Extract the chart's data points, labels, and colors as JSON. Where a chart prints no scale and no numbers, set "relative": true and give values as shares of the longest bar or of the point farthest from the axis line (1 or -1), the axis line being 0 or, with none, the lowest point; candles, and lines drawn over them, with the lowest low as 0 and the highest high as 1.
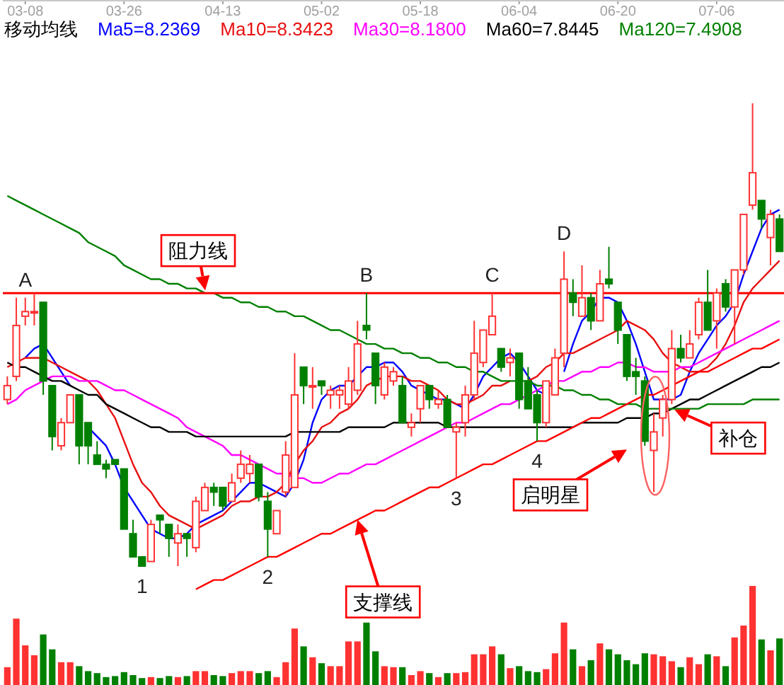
{
  "chart_data": [
    {
      "type": "candlestick",
      "relative": true,
      "legend": "top left",
      "legend_title": "移动均线",
      "tick_labels": "x",
      "categories": [
        null,
        null,
        "03-08",
        null,
        null,
        null,
        null,
        null,
        null,
        null,
        null,
        null,
        null,
        "03-26",
        null,
        null,
        null,
        null,
        null,
        null,
        null,
        null,
        null,
        null,
        "04-13",
        null,
        null,
        null,
        null,
        null,
        null,
        null,
        null,
        null,
        null,
        "05-02",
        null,
        null,
        null,
        null,
        null,
        null,
        null,
        null,
        null,
        null,
        "05-18",
        null,
        null,
        null,
        null,
        null,
        null,
        null,
        null,
        null,
        null,
        "06-04",
        null,
        null,
        null,
        null,
        null,
        null,
        null,
        null,
        null,
        null,
        "06-20",
        null,
        null,
        null,
        null,
        null,
        null,
        null,
        null,
        null,
        null,
        "07-06",
        null,
        null,
        null,
        null,
        null,
        null,
        null
      ],
      "ohlc": [
        [
          0.36,
          0.41,
          0.35,
          0.39
        ],
        [
          0.41,
          0.58,
          0.4,
          0.52
        ],
        [
          0.54,
          0.58,
          0.52,
          0.55
        ],
        [
          0.55,
          0.59,
          0.52,
          0.55
        ],
        [
          0.57,
          0.57,
          0.37,
          0.4
        ],
        [
          0.39,
          0.39,
          0.25,
          0.28
        ],
        [
          0.26,
          0.32,
          0.25,
          0.31
        ],
        [
          0.31,
          0.37,
          0.31,
          0.37
        ],
        [
          0.37,
          0.37,
          0.22,
          0.26
        ],
        [
          0.31,
          0.31,
          0.22,
          0.26
        ],
        [
          0.24,
          0.27,
          0.22,
          0.22
        ],
        [
          0.22,
          0.23,
          0.19,
          0.21
        ],
        [
          0.23,
          0.23,
          0.22,
          0.22
        ],
        [
          0.21,
          0.21,
          0.08,
          0.08
        ],
        [
          0.07,
          0.1,
          0.02,
          0.02
        ],
        [
          0.02,
          0.02,
          0,
          0
        ],
        [
          0.01,
          0.1,
          0.01,
          0.09
        ],
        [
          0.11,
          0.11,
          0.07,
          0.1
        ],
        [
          0.09,
          0.09,
          0.02,
          0.06
        ],
        [
          0.05,
          0.09,
          0,
          0.07
        ],
        [
          0.07,
          0.07,
          0.02,
          0.06
        ],
        [
          0.04,
          0.15,
          0.03,
          0.14
        ],
        [
          0.12,
          0.18,
          0.12,
          0.17
        ],
        [
          0.17,
          0.18,
          0.13,
          0.16
        ],
        [
          0.17,
          0.17,
          0.12,
          0.13
        ],
        [
          0.14,
          0.2,
          0.14,
          0.18
        ],
        [
          0.19,
          0.25,
          0.18,
          0.22
        ],
        [
          0.2,
          0.24,
          0.18,
          0.22
        ],
        [
          0.22,
          0.22,
          0.14,
          0.15
        ],
        [
          0.14,
          0.16,
          0.02,
          0.08
        ],
        [
          0.07,
          0.12,
          0.07,
          0.12
        ],
        [
          0.16,
          0.27,
          0.15,
          0.24
        ],
        [
          0.17,
          0.46,
          0.17,
          0.37
        ],
        [
          0.43,
          0.43,
          0.35,
          0.39
        ],
        [
          0.39,
          0.43,
          0.34,
          0.39
        ],
        [
          0.4,
          0.4,
          0.37,
          0.39
        ],
        [
          0.37,
          0.39,
          0.34,
          0.38
        ],
        [
          0.37,
          0.39,
          0.34,
          0.38
        ],
        [
          0.35,
          0.43,
          0.34,
          0.4
        ],
        [
          0.38,
          0.53,
          0.37,
          0.48
        ],
        [
          0.52,
          0.59,
          0.49,
          0.51
        ],
        [
          0.46,
          0.46,
          0.35,
          0.39
        ],
        [
          0.37,
          0.44,
          0.36,
          0.43
        ],
        [
          0.4,
          0.43,
          0.39,
          0.42
        ],
        [
          0.39,
          0.41,
          0.31,
          0.31
        ],
        [
          0.3,
          0.33,
          0.28,
          0.31
        ],
        [
          0.34,
          0.39,
          0.31,
          0.39
        ],
        [
          0.39,
          0.39,
          0.34,
          0.36
        ],
        [
          0.35,
          0.38,
          0.34,
          0.36
        ],
        [
          0.36,
          0.37,
          0.3,
          0.3
        ],
        [
          0.29,
          0.31,
          0.19,
          0.3
        ],
        [
          0.31,
          0.39,
          0.28,
          0.37
        ],
        [
          0.37,
          0.53,
          0.36,
          0.46
        ],
        [
          0.44,
          0.51,
          0.43,
          0.51
        ],
        [
          0.5,
          0.59,
          0.5,
          0.54
        ],
        [
          0.47,
          0.47,
          0.42,
          0.43
        ],
        [
          0.44,
          0.47,
          0.41,
          0.45
        ],
        [
          0.46,
          0.46,
          0.34,
          0.36
        ],
        [
          0.4,
          0.43,
          0.34,
          0.34
        ],
        [
          0.37,
          0.38,
          0.27,
          0.31
        ],
        [
          0.31,
          0.4,
          0.3,
          0.4
        ],
        [
          0.37,
          0.47,
          0.37,
          0.45
        ],
        [
          0.46,
          0.68,
          0.43,
          0.62
        ],
        [
          0.59,
          0.62,
          0.54,
          0.57
        ],
        [
          0.54,
          0.65,
          0.54,
          0.58
        ],
        [
          0.58,
          0.59,
          0.51,
          0.53
        ],
        [
          0.53,
          0.64,
          0.53,
          0.61
        ],
        [
          0.62,
          0.69,
          0.6,
          0.61
        ],
        [
          0.57,
          0.57,
          0.48,
          0.51
        ],
        [
          0.5,
          0.5,
          0.4,
          0.41
        ],
        [
          0.42,
          0.45,
          0.37,
          0.41
        ],
        [
          0.4,
          0.41,
          0.26,
          0.27
        ],
        [
          0.25,
          0.33,
          0.16,
          0.29
        ],
        [
          0.32,
          0.37,
          0.28,
          0.36
        ],
        [
          0.36,
          0.51,
          0.35,
          0.47
        ],
        [
          0.47,
          0.5,
          0.44,
          0.45
        ],
        [
          0.45,
          0.51,
          0.45,
          0.48
        ],
        [
          0.5,
          0.58,
          0.49,
          0.57
        ],
        [
          0.57,
          0.64,
          0.51,
          0.51
        ],
        [
          0.53,
          0.6,
          0.47,
          0.59
        ],
        [
          0.61,
          0.62,
          0.55,
          0.56
        ],
        [
          0.56,
          0.64,
          0.48,
          0.64
        ],
        [
          0.64,
          0.76,
          0.63,
          0.76
        ],
        [
          0.78,
          1,
          0.77,
          0.85
        ],
        [
          0.79,
          0.79,
          0.73,
          0.75
        ],
        [
          0.71,
          0.77,
          0.65,
          0.76
        ],
        [
          0.75,
          0.76,
          0.68,
          0.68
        ]
      ],
      "colors": [
        "#ff3232",
        "#ff3232",
        "#ff3232",
        "#ff3232",
        "#008000",
        "#008000",
        "#ff3232",
        "#ff3232",
        "#008000",
        "#008000",
        "#008000",
        "#008000",
        "#008000",
        "#008000",
        "#008000",
        "#008000",
        "#ff3232",
        "#008000",
        "#008000",
        "#ff3232",
        "#008000",
        "#ff3232",
        "#ff3232",
        "#008000",
        "#008000",
        "#ff3232",
        "#ff3232",
        "#ff3232",
        "#008000",
        "#008000",
        "#ff3232",
        "#ff3232",
        "#ff3232",
        "#008000",
        "#ff3232",
        "#008000",
        "#ff3232",
        "#ff3232",
        "#ff3232",
        "#ff3232",
        "#008000",
        "#008000",
        "#ff3232",
        "#ff3232",
        "#008000",
        "#ff3232",
        "#ff3232",
        "#008000",
        "#ff3232",
        "#008000",
        "#ff3232",
        "#ff3232",
        "#ff3232",
        "#ff3232",
        "#ff3232",
        "#008000",
        "#ff3232",
        "#008000",
        "#008000",
        "#008000",
        "#ff3232",
        "#ff3232",
        "#ff3232",
        "#008000",
        "#ff3232",
        "#008000",
        "#ff3232",
        "#008000",
        "#008000",
        "#008000",
        "#008000",
        "#008000",
        "#ff3232",
        "#ff3232",
        "#ff3232",
        "#008000",
        "#ff3232",
        "#ff3232",
        "#008000",
        "#ff3232",
        "#008000",
        "#ff3232",
        "#ff3232",
        "#ff3232",
        "#008000",
        "#ff3232",
        "#008000"
      ],
      "series": [
        {
          "type": "line",
          "name": "Ma5=8.2369",
          "color": "#0000ff",
          "values": [
            null,
            null,
            0.45,
            0.47,
            0.48,
            0.45,
            0.42,
            0.39,
            null,
            0.3,
            0.28,
            0.26,
            0.22,
            0.17,
            0.14,
            0.11,
            0.08,
            0.07,
            0.06,
            0.06,
            0.07,
            0.09,
            0.1,
            0.11,
            0.12,
            0.14,
            0.16,
            0.18,
            0.18,
            0.17,
            0.16,
            0.15,
            0.18,
            0.23,
            0.31,
            0.36,
            0.38,
            0.39,
            0.39,
            0.41,
            0.43,
            0.43,
            0.44,
            0.44,
            0.42,
            0.39,
            0.38,
            0.37,
            0.36,
            0.36,
            0.35,
            0.34,
            0.37,
            0.41,
            0.43,
            0.45,
            0.46,
            0.44,
            0.41,
            0.38,
            0.37,
            null,
            0.42,
            0.48,
            0.53,
            0.55,
            0.58,
            0.58,
            0.57,
            0.53,
            0.48,
            0.42,
            0.36,
            0.36,
            0.36,
            0.37,
            0.42,
            0.46,
            0.49,
            0.52,
            0.54,
            0.57,
            0.63,
            0.68,
            0.73,
            0.76,
            0.77
          ]
        },
        {
          "type": "line",
          "name": "Ma10=8.3423",
          "color": "#e81010",
          "values": [
            0.43,
            0.44,
            0.45,
            0.45,
            0.45,
            0.44,
            0.43,
            0.42,
            0.41,
            0.4,
            0.38,
            0.35,
            0.32,
            0.27,
            0.22,
            0.18,
            0.16,
            0.13,
            0.11,
            0.1,
            0.09,
            0.08,
            0.09,
            0.1,
            0.11,
            0.13,
            0.14,
            0.14,
            0.15,
            0.15,
            0.16,
            0.18,
            0.22,
            0.25,
            0.27,
            0.3,
            0.31,
            0.33,
            0.34,
            0.36,
            0.39,
            0.4,
            0.41,
            0.41,
            0.41,
            0.4,
            0.4,
            0.39,
            0.38,
            0.36,
            0.35,
            0.35,
            0.36,
            0.37,
            0.39,
            0.39,
            0.4,
            null,
            0.4,
            0.41,
            0.43,
            0.44,
            0.46,
            0.46,
            0.47,
            0.48,
            0.49,
            0.5,
            0.51,
            0.53,
            0.52,
            0.51,
            0.49,
            0.46,
            0.44,
            0.43,
            0.42,
            0.42,
            0.43,
            0.45,
            0.48,
            0.52,
            0.57,
            0.6,
            0.62,
            0.64,
            0.66
          ]
        },
        {
          "type": "line",
          "name": "Ma30=8.1800",
          "color": "#ff00ff",
          "values": [
            0.35,
            0.36,
            0.38,
            0.39,
            0.4,
            0.41,
            0.41,
            0.41,
            0.4,
            0.4,
            0.4,
            0.39,
            0.38,
            0.38,
            0.37,
            0.36,
            0.35,
            0.34,
            0.33,
            0.32,
            0.3,
            0.29,
            0.28,
            0.27,
            0.26,
            0.24,
            0.24,
            0.23,
            0.22,
            0.21,
            0.2,
            0.2,
            0.19,
            0.19,
            0.18,
            0.18,
            0.19,
            0.2,
            0.2,
            0.21,
            0.22,
            0.22,
            0.23,
            0.24,
            0.25,
            0.26,
            0.27,
            0.28,
            0.29,
            0.3,
            0.31,
            0.31,
            0.32,
            0.33,
            0.34,
            0.35,
            0.35,
            0.36,
            0.37,
            0.38,
            0.39,
            0.4,
            0.4,
            0.41,
            0.42,
            0.42,
            0.43,
            0.43,
            0.44,
            0.44,
            0.43,
            0.43,
            0.42,
            0.42,
            0.42,
            0.43,
            0.43,
            0.44,
            0.45,
            0.46,
            0.47,
            0.48,
            0.49,
            0.5,
            0.51,
            0.52,
            0.53
          ]
        },
        {
          "type": "line",
          "name": "Ma60=7.8445",
          "color": "#000000",
          "values": [
            0.44,
            0.43,
            0.43,
            0.42,
            0.41,
            0.4,
            0.4,
            0.39,
            0.38,
            0.37,
            0.37,
            0.35,
            0.34,
            0.33,
            0.32,
            0.31,
            0.3,
            0.3,
            0.29,
            0.29,
            0.29,
            0.28,
            0.28,
            0.28,
            0.28,
            0.28,
            0.28,
            0.28,
            0.28,
            0.28,
            0.28,
            0.28,
            0.29,
            0.29,
            0.29,
            0.29,
            0.29,
            0.29,
            0.3,
            0.3,
            0.3,
            0.3,
            0.3,
            0.31,
            0.31,
            0.31,
            0.31,
            0.31,
            0.31,
            0.3,
            0.3,
            0.3,
            0.3,
            0.3,
            0.3,
            0.3,
            0.3,
            0.3,
            0.3,
            0.3,
            0.3,
            0.3,
            0.3,
            0.3,
            0.31,
            0.31,
            0.31,
            0.31,
            0.31,
            0.32,
            0.32,
            0.32,
            0.33,
            0.33,
            0.34,
            0.35,
            0.36,
            0.36,
            0.37,
            0.38,
            0.39,
            0.4,
            0.41,
            0.42,
            0.43,
            0.43,
            0.44
          ]
        },
        {
          "type": "line",
          "name": "Ma120=7.4908",
          "color": "#008000",
          "values": [
            0.8,
            0.79,
            0.78,
            0.77,
            0.76,
            0.75,
            0.74,
            0.73,
            0.72,
            0.7,
            0.69,
            0.68,
            0.67,
            0.65,
            0.64,
            0.63,
            0.62,
            0.62,
            0.61,
            0.61,
            0.6,
            0.6,
            0.59,
            0.59,
            0.58,
            0.58,
            0.57,
            0.57,
            0.56,
            0.56,
            0.55,
            0.55,
            0.54,
            0.54,
            0.53,
            0.52,
            0.51,
            0.51,
            0.5,
            0.49,
            0.48,
            0.48,
            0.47,
            0.47,
            0.46,
            0.46,
            0.45,
            0.45,
            0.44,
            0.44,
            0.43,
            0.43,
            0.42,
            0.42,
            0.41,
            0.4,
            0.4,
            0.4,
            0.4,
            0.39,
            0.39,
            0.39,
            0.38,
            0.38,
            0.37,
            0.37,
            0.36,
            0.36,
            0.35,
            0.35,
            0.35,
            0.34,
            0.34,
            0.34,
            0.34,
            0.34,
            0.34,
            0.34,
            0.35,
            0.35,
            0.35,
            0.35,
            0.35,
            0.36,
            0.36,
            0.36,
            0.36
          ]
        },
        {
          "type": "line",
          "color": "#ff0000",
          "values": [
            null,
            null,
            null,
            null,
            null,
            null,
            null,
            null,
            null,
            null,
            null,
            null,
            null,
            null,
            null,
            null,
            null,
            null,
            null,
            null,
            null,
            -0.05,
            -0.04,
            -0.03,
            -0.03,
            -0.02,
            -0.01,
            0.0,
            0.01,
            0.02,
            0.02,
            0.03,
            0.04,
            0.05,
            0.06,
            0.07,
            0.07,
            0.08,
            0.09,
            0.1,
            0.11,
            0.12,
            0.12,
            0.13,
            0.14,
            0.15,
            0.16,
            0.17,
            0.17,
            0.18,
            0.19,
            0.2,
            0.21,
            0.22,
            0.22,
            0.23,
            0.24,
            0.25,
            0.26,
            0.27,
            0.27,
            0.28,
            0.29,
            0.3,
            0.31,
            0.32,
            0.32,
            0.33,
            0.34,
            0.35,
            0.36,
            0.37,
            0.37,
            0.38,
            0.39,
            0.4,
            0.41,
            0.42,
            0.42,
            0.43,
            0.44,
            0.45,
            0.46,
            0.47,
            0.47,
            0.48,
            0.49
          ]
        }
      ],
      "ref_lines": [
        {
          "axis": "y",
          "value": 0.59,
          "label": "阻力线",
          "color": "#ff0000"
        }
      ],
      "annotations": [
        "A",
        "B",
        "C",
        "D",
        "1",
        "2",
        "3",
        "4",
        "支撑线",
        "启明星",
        "补仓"
      ]
    },
    {
      "type": "bar",
      "relative": true,
      "categories": [
        null,
        null,
        null,
        null,
        null,
        null,
        null,
        null,
        null,
        null,
        null,
        null,
        null,
        null,
        null,
        null,
        null,
        null,
        null,
        null,
        null,
        null,
        null,
        null,
        null,
        null,
        null,
        null,
        null,
        null,
        null,
        null,
        null,
        null,
        null,
        null,
        null,
        null,
        null,
        null,
        null,
        null,
        null,
        null,
        null,
        null,
        null,
        null,
        null,
        null,
        null,
        null,
        null,
        null,
        null,
        null,
        null,
        null,
        null,
        null,
        null,
        null,
        null,
        null,
        null,
        null,
        null,
        null,
        null,
        null,
        null,
        null,
        null,
        null,
        null,
        null,
        null,
        null,
        null,
        null,
        null,
        null,
        null,
        null,
        null,
        null,
        null
      ],
      "values": [
        0.18,
        0.67,
        0.4,
        0.3,
        0.51,
        0.36,
        0.23,
        0.23,
        0.19,
        0.14,
        0.12,
        0.08,
        0.09,
        0.13,
        0.1,
        0.07,
        0.08,
        0.07,
        0.09,
        0.08,
        0.09,
        0.14,
        0.14,
        0.1,
        0.09,
        0.12,
        0.14,
        0.14,
        0.12,
        0.14,
        0.08,
        0.23,
        0.57,
        0.39,
        0.28,
        0.22,
        0.19,
        0.19,
        0.44,
        0.44,
        0.63,
        0.34,
        0.19,
        0.18,
        0.18,
        0.1,
        0.14,
        0.12,
        0.08,
        0.12,
        0.12,
        0.13,
        0.31,
        0.31,
        0.39,
        0.31,
        0.17,
        0.19,
        0.14,
        0.13,
        0.16,
        0.32,
        0.63,
        0.36,
        0.19,
        0.25,
        0.42,
        0.36,
        0.31,
        0.25,
        0.21,
        0.32,
        0.31,
        0.29,
        0.24,
        0.18,
        0.28,
        0.21,
        0.31,
        0.29,
        0.19,
        0.48,
        0.6,
        1,
        0.46,
        0.35,
        0.47
      ],
      "colors": [
        "#ff3232",
        "#ff3232",
        "#ff3232",
        "#ff3232",
        "#008000",
        "#008000",
        "#ff3232",
        "#ff3232",
        "#008000",
        "#008000",
        "#008000",
        "#008000",
        "#008000",
        "#008000",
        "#008000",
        "#008000",
        "#ff3232",
        "#008000",
        "#008000",
        "#ff3232",
        "#008000",
        "#ff3232",
        "#ff3232",
        "#008000",
        "#008000",
        "#ff3232",
        "#ff3232",
        "#ff3232",
        "#008000",
        "#008000",
        "#ff3232",
        "#ff3232",
        "#ff3232",
        "#008000",
        "#ff3232",
        "#008000",
        "#ff3232",
        "#ff3232",
        "#ff3232",
        "#ff3232",
        "#008000",
        "#008000",
        "#ff3232",
        "#ff3232",
        "#008000",
        "#ff3232",
        "#ff3232",
        "#008000",
        "#ff3232",
        "#008000",
        "#ff3232",
        "#ff3232",
        "#ff3232",
        "#ff3232",
        "#ff3232",
        "#008000",
        "#ff3232",
        "#008000",
        "#008000",
        "#008000",
        "#ff3232",
        "#ff3232",
        "#ff3232",
        "#008000",
        "#ff3232",
        "#008000",
        "#ff3232",
        "#008000",
        "#008000",
        "#008000",
        "#008000",
        "#008000",
        "#ff3232",
        "#ff3232",
        "#ff3232",
        "#008000",
        "#ff3232",
        "#ff3232",
        "#008000",
        "#ff3232",
        "#008000",
        "#ff3232",
        "#ff3232",
        "#ff3232",
        "#008000",
        "#ff3232",
        "#008000"
      ]
    }
  ]
}
